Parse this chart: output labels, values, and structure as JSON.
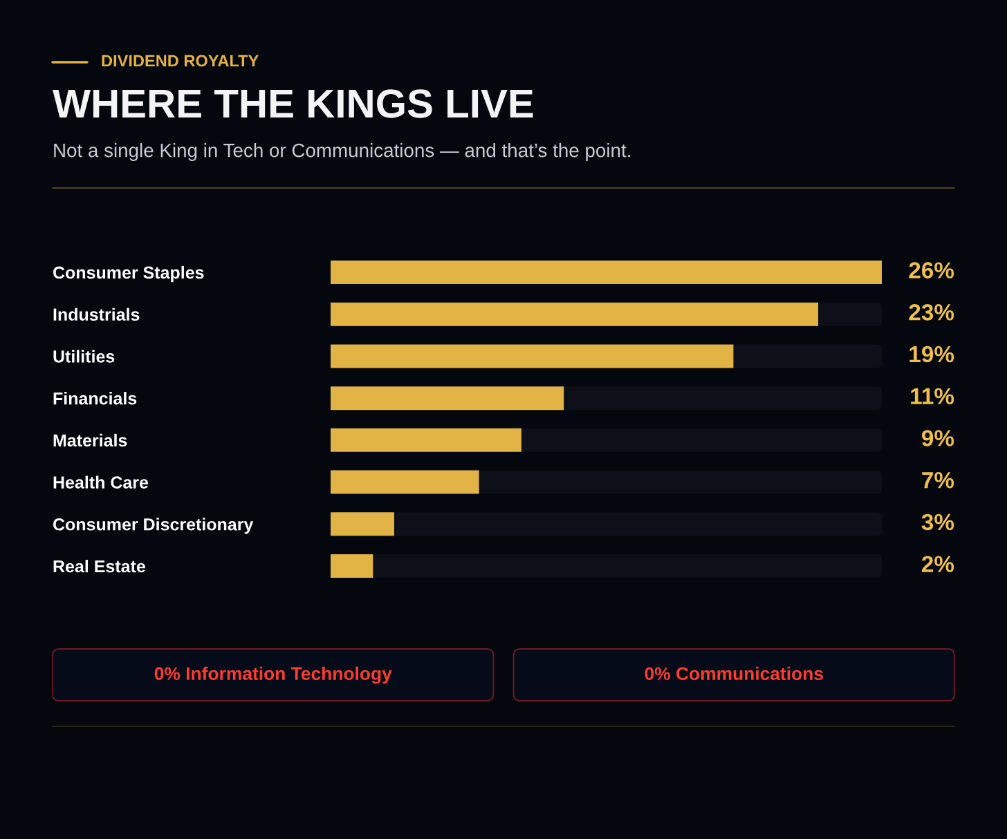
{
  "chart_data": {
    "type": "bar",
    "orientation": "horizontal",
    "title": "WHERE THE KINGS LIVE",
    "subtitle": "Not a single King in Tech or Communications — and that’s the point.",
    "categories": [
      "Consumer Staples",
      "Industrials",
      "Utilities",
      "Financials",
      "Materials",
      "Health Care",
      "Consumer Discretionary",
      "Real Estate"
    ],
    "values": [
      26,
      23,
      19,
      11,
      9,
      7,
      3,
      2
    ],
    "value_labels": [
      "26%",
      "23%",
      "19%",
      "11%",
      "9%",
      "7%",
      "3%",
      "2%"
    ],
    "color": "#e2b345",
    "xlim": [
      0,
      26
    ],
    "tick_labels": "y",
    "grid": false,
    "legend": false,
    "annotations": [
      "DIVIDEND ROYALTY",
      "0% Information Technology",
      "0% Communications"
    ]
  }
}
